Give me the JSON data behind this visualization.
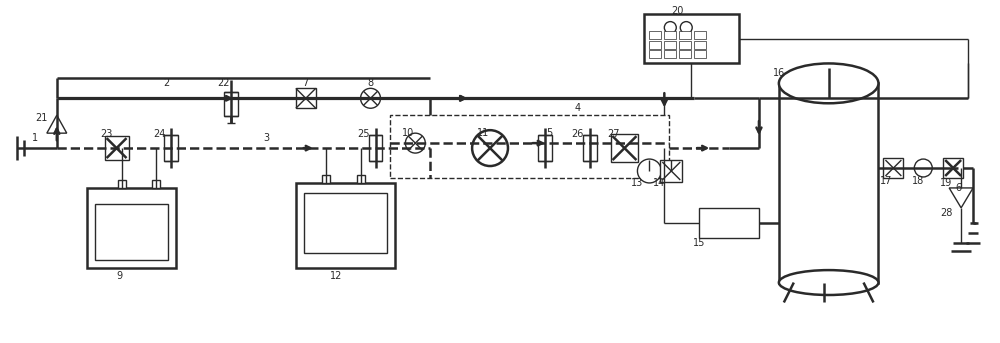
{
  "bg_color": "#ffffff",
  "lc": "#2a2a2a",
  "lw": 1.0,
  "lw2": 1.8,
  "figsize": [
    10.0,
    3.43
  ],
  "dpi": 100,
  "label_fs": 7.0
}
